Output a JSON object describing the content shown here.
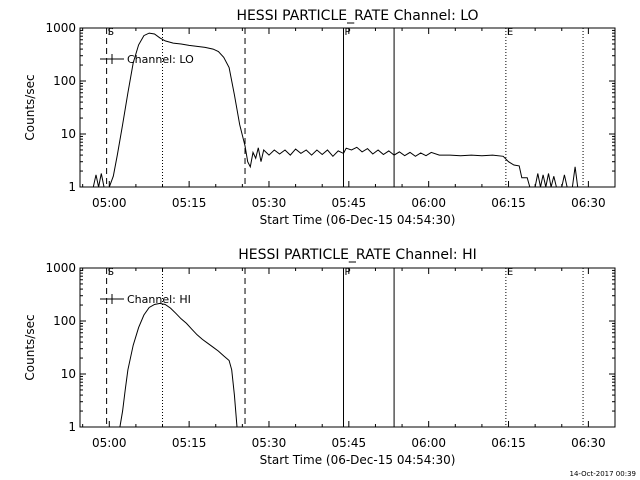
{
  "footer": {
    "timestamp": "14-Oct-2017 00:39"
  },
  "chart_data": [
    {
      "type": "line",
      "title": "HESSI PARTICLE_RATE Channel: LO",
      "xlabel": "Start Time (06-Dec-15 04:54:30)",
      "ylabel": "Counts/sec",
      "yscale": "log",
      "ylim": [
        1,
        1000
      ],
      "xlim": [
        "04:54:30",
        "06:35:00"
      ],
      "x_ticks": [
        "05:00",
        "05:15",
        "05:30",
        "05:45",
        "06:00",
        "06:15",
        "06:30"
      ],
      "y_ticks": [
        "1",
        "10",
        "100",
        "1000"
      ],
      "legend": {
        "label": "Channel: LO",
        "position": "top-left"
      },
      "markers": [
        {
          "label": "S",
          "time": "04:59:30",
          "style": "dashed"
        },
        {
          "label": "",
          "time": "05:10:00",
          "style": "dotted"
        },
        {
          "label": "",
          "time": "05:25:30",
          "style": "dashed"
        },
        {
          "label": "P",
          "time": "05:44:00",
          "style": "solid"
        },
        {
          "label": "",
          "time": "05:53:30",
          "style": "solid"
        },
        {
          "label": "E",
          "time": "06:14:30",
          "style": "dotted"
        },
        {
          "label": "",
          "time": "06:29:00",
          "style": "dotted"
        }
      ],
      "series": [
        {
          "name": "Channel: LO",
          "points": [
            [
              "04:57:00",
              1
            ],
            [
              "04:57:30",
              1.7
            ],
            [
              "04:58:00",
              1
            ],
            [
              "04:58:30",
              1.8
            ],
            [
              "04:59:00",
              1
            ],
            [
              "05:00:00",
              1
            ],
            [
              "05:00:45",
              1.6
            ],
            [
              "05:01:30",
              4
            ],
            [
              "05:02:30",
              15
            ],
            [
              "05:03:30",
              60
            ],
            [
              "05:04:30",
              220
            ],
            [
              "05:05:30",
              480
            ],
            [
              "05:06:30",
              720
            ],
            [
              "05:07:30",
              800
            ],
            [
              "05:08:30",
              770
            ],
            [
              "05:09:30",
              650
            ],
            [
              "05:10:30",
              570
            ],
            [
              "05:12:00",
              520
            ],
            [
              "05:13:30",
              500
            ],
            [
              "05:15:00",
              470
            ],
            [
              "05:16:30",
              450
            ],
            [
              "05:18:00",
              430
            ],
            [
              "05:19:30",
              400
            ],
            [
              "05:20:30",
              360
            ],
            [
              "05:21:30",
              280
            ],
            [
              "05:22:30",
              180
            ],
            [
              "05:23:30",
              55
            ],
            [
              "05:24:30",
              15
            ],
            [
              "05:25:30",
              6
            ],
            [
              "05:26:00",
              3
            ],
            [
              "05:26:30",
              2.4
            ],
            [
              "05:27:00",
              4.5
            ],
            [
              "05:27:30",
              3.5
            ],
            [
              "05:28:00",
              5.5
            ],
            [
              "05:28:30",
              3
            ],
            [
              "05:29:00",
              5
            ],
            [
              "05:30:00",
              4
            ],
            [
              "05:31:00",
              5
            ],
            [
              "05:32:00",
              4.2
            ],
            [
              "05:33:00",
              5
            ],
            [
              "05:34:00",
              4
            ],
            [
              "05:35:00",
              5.2
            ],
            [
              "05:36:00",
              4.3
            ],
            [
              "05:37:00",
              5
            ],
            [
              "05:38:00",
              4
            ],
            [
              "05:39:00",
              5
            ],
            [
              "05:40:00",
              4.1
            ],
            [
              "05:41:00",
              5
            ],
            [
              "05:42:00",
              3.8
            ],
            [
              "05:43:00",
              4.8
            ],
            [
              "05:44:00",
              4.3
            ],
            [
              "05:44:30",
              5.4
            ],
            [
              "05:45:30",
              5
            ],
            [
              "05:46:30",
              5.6
            ],
            [
              "05:47:30",
              4.6
            ],
            [
              "05:48:30",
              5.3
            ],
            [
              "05:49:30",
              4.2
            ],
            [
              "05:50:30",
              5
            ],
            [
              "05:51:30",
              4.1
            ],
            [
              "05:52:30",
              4.8
            ],
            [
              "05:53:30",
              4
            ],
            [
              "05:54:30",
              4.6
            ],
            [
              "05:55:30",
              3.9
            ],
            [
              "05:56:30",
              4.5
            ],
            [
              "05:57:30",
              3.8
            ],
            [
              "05:58:30",
              4.4
            ],
            [
              "05:59:30",
              3.9
            ],
            [
              "06:00:30",
              4.5
            ],
            [
              "06:02:00",
              4
            ],
            [
              "06:04:00",
              4
            ],
            [
              "06:06:00",
              3.9
            ],
            [
              "06:08:00",
              4
            ],
            [
              "06:10:00",
              3.9
            ],
            [
              "06:12:00",
              4
            ],
            [
              "06:14:00",
              3.8
            ],
            [
              "06:15:00",
              3
            ],
            [
              "06:16:00",
              2.6
            ],
            [
              "06:17:00",
              2.5
            ],
            [
              "06:17:30",
              1.5
            ],
            [
              "06:18:30",
              1.5
            ],
            [
              "06:19:00",
              1
            ],
            [
              "06:20:00",
              1
            ],
            [
              "06:20:30",
              1.8
            ],
            [
              "06:21:00",
              1
            ],
            [
              "06:21:30",
              1.7
            ],
            [
              "06:22:00",
              1
            ],
            [
              "06:22:30",
              1.8
            ],
            [
              "06:23:00",
              1
            ],
            [
              "06:23:30",
              1.6
            ],
            [
              "06:24:00",
              1
            ],
            [
              "06:25:00",
              1
            ],
            [
              "06:25:30",
              1.7
            ],
            [
              "06:26:00",
              1
            ],
            [
              "06:27:00",
              1
            ],
            [
              "06:27:30",
              2.4
            ],
            [
              "06:28:00",
              1
            ]
          ]
        }
      ]
    },
    {
      "type": "line",
      "title": "HESSI PARTICLE_RATE Channel: HI",
      "xlabel": "Start Time (06-Dec-15 04:54:30)",
      "ylabel": "Counts/sec",
      "yscale": "log",
      "ylim": [
        1,
        1000
      ],
      "xlim": [
        "04:54:30",
        "06:35:00"
      ],
      "x_ticks": [
        "05:00",
        "05:15",
        "05:30",
        "05:45",
        "06:00",
        "06:15",
        "06:30"
      ],
      "y_ticks": [
        "1",
        "10",
        "100",
        "1000"
      ],
      "legend": {
        "label": "Channel: HI",
        "position": "top-left"
      },
      "markers": [
        {
          "label": "S",
          "time": "04:59:30",
          "style": "dashed"
        },
        {
          "label": "",
          "time": "05:10:00",
          "style": "dotted"
        },
        {
          "label": "",
          "time": "05:25:30",
          "style": "dashed"
        },
        {
          "label": "P",
          "time": "05:44:00",
          "style": "solid"
        },
        {
          "label": "",
          "time": "05:53:30",
          "style": "solid"
        },
        {
          "label": "E",
          "time": "06:14:30",
          "style": "dotted"
        },
        {
          "label": "",
          "time": "06:29:00",
          "style": "dotted"
        }
      ],
      "series": [
        {
          "name": "Channel: HI",
          "points": [
            [
              "05:02:00",
              1
            ],
            [
              "05:02:30",
              2
            ],
            [
              "05:03:00",
              5
            ],
            [
              "05:03:30",
              12
            ],
            [
              "05:04:30",
              35
            ],
            [
              "05:05:30",
              75
            ],
            [
              "05:06:30",
              130
            ],
            [
              "05:07:30",
              180
            ],
            [
              "05:08:30",
              205
            ],
            [
              "05:09:30",
              215
            ],
            [
              "05:10:30",
              205
            ],
            [
              "05:11:30",
              175
            ],
            [
              "05:12:30",
              140
            ],
            [
              "05:13:30",
              110
            ],
            [
              "05:14:30",
              90
            ],
            [
              "05:15:30",
              70
            ],
            [
              "05:16:30",
              55
            ],
            [
              "05:17:30",
              45
            ],
            [
              "05:18:30",
              38
            ],
            [
              "05:19:30",
              32
            ],
            [
              "05:20:30",
              27
            ],
            [
              "05:21:30",
              22
            ],
            [
              "05:22:30",
              18
            ],
            [
              "05:23:00",
              12
            ],
            [
              "05:23:30",
              4
            ],
            [
              "05:24:00",
              1
            ]
          ]
        }
      ]
    }
  ]
}
